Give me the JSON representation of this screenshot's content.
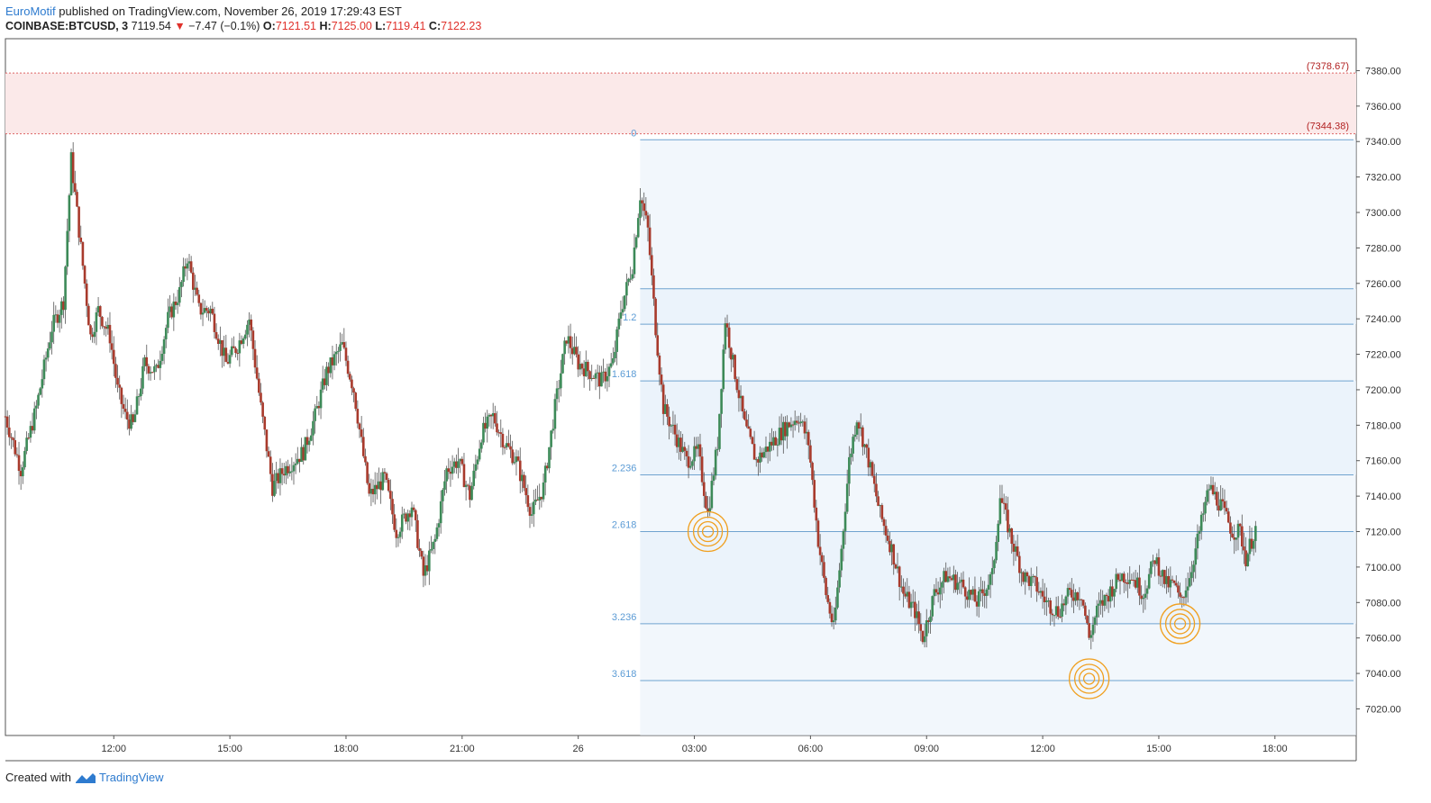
{
  "header": {
    "author": "EuroMotif",
    "published_text": " published on TradingView.com, November 26, 2019 17:29:43 EST",
    "symbol": "COINBASE:BTCUSD, 3",
    "last_price": "7119.54",
    "change_arrow": "▼",
    "change_text": "−7.47 (−0.1%)",
    "open_label": "O:",
    "open_value": "7121.51",
    "high_label": "H:",
    "high_value": "7125.00",
    "low_label": "L:",
    "low_value": "7119.41",
    "close_label": "C:",
    "close_value": "7122.23"
  },
  "footer": {
    "created_with": "Created with",
    "brand": "TradingView"
  },
  "colors": {
    "up": "#3d8a58",
    "down": "#a83a2c",
    "wick": "#555555",
    "fib_line": "#6fa3cf",
    "fib_fill": "#e8f1fa",
    "zone_fill": "#fbe9e9",
    "zone_line": "#d66",
    "circle": "#f0a020"
  },
  "chart_data": {
    "type": "candlestick",
    "y_axis": {
      "range": [
        7005,
        7398
      ],
      "ticks": [
        "7020.00",
        "7040.00",
        "7060.00",
        "7080.00",
        "7100.00",
        "7120.00",
        "7140.00",
        "7160.00",
        "7180.00",
        "7200.00",
        "7220.00",
        "7240.00",
        "7260.00",
        "7280.00",
        "7300.00",
        "7320.00",
        "7340.00",
        "7360.00",
        "7380.00"
      ],
      "tick_values": [
        7020,
        7040,
        7060,
        7080,
        7100,
        7120,
        7140,
        7160,
        7180,
        7200,
        7220,
        7240,
        7260,
        7280,
        7300,
        7320,
        7340,
        7360,
        7380
      ]
    },
    "x_axis": {
      "labels": [
        "12:00",
        "15:00",
        "18:00",
        "21:00",
        "26",
        "03:00",
        "06:00",
        "09:00",
        "12:00",
        "15:00",
        "18:00"
      ],
      "label_hours": [
        12,
        15,
        18,
        21,
        24,
        27,
        30,
        33,
        36,
        39,
        42
      ],
      "range_hours": [
        9.2,
        44.1
      ]
    },
    "resistance_zone": {
      "top": 7378.67,
      "bottom": 7344.38,
      "top_label": "(7378.67)",
      "bottom_label": "(7344.38)"
    },
    "fibonacci": {
      "start_hours": 25.6,
      "levels": [
        {
          "label": "0",
          "price": 7341
        },
        {
          "label": "",
          "price": 7257
        },
        {
          "label": "1.2",
          "price": 7237
        },
        {
          "label": "1.618",
          "price": 7205
        },
        {
          "label": "2.236",
          "price": 7152
        },
        {
          "label": "2.618",
          "price": 7120
        },
        {
          "label": "3.236",
          "price": 7068
        },
        {
          "label": "3.618",
          "price": 7036
        }
      ]
    },
    "markers": [
      {
        "hours": 27.35,
        "price": 7120
      },
      {
        "hours": 37.2,
        "price": 7037
      },
      {
        "hours": 39.55,
        "price": 7068
      }
    ],
    "price_path": [
      [
        9.2,
        7185
      ],
      [
        9.6,
        7155
      ],
      [
        10.0,
        7190
      ],
      [
        10.4,
        7235
      ],
      [
        10.7,
        7250
      ],
      [
        10.9,
        7330
      ],
      [
        11.0,
        7310
      ],
      [
        11.2,
        7270
      ],
      [
        11.4,
        7230
      ],
      [
        11.6,
        7245
      ],
      [
        11.9,
        7230
      ],
      [
        12.1,
        7200
      ],
      [
        12.3,
        7185
      ],
      [
        12.5,
        7180
      ],
      [
        12.8,
        7215
      ],
      [
        13.1,
        7210
      ],
      [
        13.4,
        7240
      ],
      [
        13.7,
        7255
      ],
      [
        13.9,
        7275
      ],
      [
        14.2,
        7245
      ],
      [
        14.5,
        7245
      ],
      [
        14.9,
        7215
      ],
      [
        15.2,
        7225
      ],
      [
        15.5,
        7240
      ],
      [
        15.8,
        7190
      ],
      [
        16.1,
        7145
      ],
      [
        16.4,
        7155
      ],
      [
        16.9,
        7165
      ],
      [
        17.2,
        7185
      ],
      [
        17.5,
        7210
      ],
      [
        17.9,
        7225
      ],
      [
        18.2,
        7200
      ],
      [
        18.6,
        7140
      ],
      [
        19.0,
        7150
      ],
      [
        19.3,
        7120
      ],
      [
        19.7,
        7135
      ],
      [
        20.0,
        7095
      ],
      [
        20.3,
        7115
      ],
      [
        20.6,
        7155
      ],
      [
        20.9,
        7160
      ],
      [
        21.2,
        7140
      ],
      [
        21.5,
        7175
      ],
      [
        21.8,
        7185
      ],
      [
        22.1,
        7170
      ],
      [
        22.4,
        7160
      ],
      [
        22.8,
        7130
      ],
      [
        23.1,
        7145
      ],
      [
        23.4,
        7190
      ],
      [
        23.7,
        7230
      ],
      [
        24.0,
        7215
      ],
      [
        24.3,
        7210
      ],
      [
        24.6,
        7205
      ],
      [
        24.9,
        7215
      ],
      [
        25.1,
        7245
      ],
      [
        25.4,
        7270
      ],
      [
        25.6,
        7310
      ],
      [
        25.8,
        7290
      ],
      [
        26.0,
        7235
      ],
      [
        26.2,
        7190
      ],
      [
        26.5,
        7175
      ],
      [
        26.8,
        7160
      ],
      [
        27.1,
        7165
      ],
      [
        27.35,
        7130
      ],
      [
        27.6,
        7170
      ],
      [
        27.8,
        7240
      ],
      [
        28.0,
        7215
      ],
      [
        28.3,
        7180
      ],
      [
        28.6,
        7160
      ],
      [
        29.0,
        7170
      ],
      [
        29.4,
        7180
      ],
      [
        29.7,
        7185
      ],
      [
        29.95,
        7170
      ],
      [
        30.2,
        7115
      ],
      [
        30.4,
        7085
      ],
      [
        30.6,
        7065
      ],
      [
        30.8,
        7110
      ],
      [
        31.0,
        7160
      ],
      [
        31.2,
        7185
      ],
      [
        31.5,
        7160
      ],
      [
        31.8,
        7130
      ],
      [
        32.1,
        7110
      ],
      [
        32.4,
        7085
      ],
      [
        32.7,
        7075
      ],
      [
        32.9,
        7060
      ],
      [
        33.2,
        7085
      ],
      [
        33.5,
        7095
      ],
      [
        33.9,
        7090
      ],
      [
        34.3,
        7080
      ],
      [
        34.7,
        7095
      ],
      [
        34.9,
        7140
      ],
      [
        35.2,
        7115
      ],
      [
        35.5,
        7095
      ],
      [
        35.8,
        7090
      ],
      [
        36.1,
        7080
      ],
      [
        36.4,
        7075
      ],
      [
        36.7,
        7085
      ],
      [
        37.0,
        7085
      ],
      [
        37.2,
        7060
      ],
      [
        37.4,
        7075
      ],
      [
        37.7,
        7085
      ],
      [
        38.0,
        7095
      ],
      [
        38.3,
        7095
      ],
      [
        38.6,
        7085
      ],
      [
        38.9,
        7105
      ],
      [
        39.2,
        7090
      ],
      [
        39.4,
        7090
      ],
      [
        39.55,
        7080
      ],
      [
        39.8,
        7095
      ],
      [
        40.1,
        7125
      ],
      [
        40.3,
        7145
      ],
      [
        40.6,
        7135
      ],
      [
        40.9,
        7120
      ],
      [
        41.1,
        7120
      ],
      [
        41.25,
        7105
      ],
      [
        41.5,
        7122
      ]
    ]
  }
}
